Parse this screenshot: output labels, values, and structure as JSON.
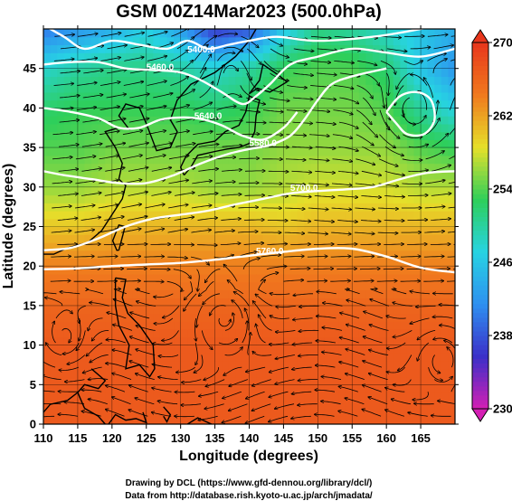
{
  "chart_data": {
    "type": "heatmap",
    "title": "GSM 00Z14Mar2023 (500.0hPa)",
    "xlabel": "Longitude (degrees)",
    "ylabel": "Latitude  (degrees)",
    "xlim": [
      110,
      170
    ],
    "ylim": [
      0,
      50
    ],
    "x_ticks": [
      "110",
      "115",
      "120",
      "125",
      "130",
      "135",
      "140",
      "145",
      "150",
      "155",
      "160",
      "165"
    ],
    "x_tick_values": [
      110,
      115,
      120,
      125,
      130,
      135,
      140,
      145,
      150,
      155,
      160,
      165
    ],
    "y_ticks": [
      "0",
      "5",
      "10",
      "15",
      "20",
      "25",
      "30",
      "35",
      "40",
      "45"
    ],
    "y_tick_values": [
      0,
      5,
      10,
      15,
      20,
      25,
      30,
      35,
      40,
      45
    ],
    "grid": true,
    "colorbar": {
      "range": [
        230,
        270
      ],
      "tick_labels": [
        "230",
        "238",
        "246",
        "254",
        "262",
        "270"
      ],
      "tick_values": [
        230,
        238,
        246,
        254,
        262,
        270
      ],
      "colors": [
        "#d51fb4",
        "#3b2fc8",
        "#2e8ff0",
        "#27d3e3",
        "#2ecf5a",
        "#e6e02a",
        "#f07a1e",
        "#e8361c"
      ]
    },
    "temperature_field": [
      {
        "lat": 50,
        "values": [
          240,
          242,
          244,
          247,
          243,
          236,
          238,
          246,
          251,
          250,
          248,
          246,
          244
        ]
      },
      {
        "lat": 45,
        "values": [
          248,
          250,
          251,
          251,
          250,
          248,
          250,
          253,
          254,
          254,
          252,
          246,
          242
        ]
      },
      {
        "lat": 40,
        "values": [
          252,
          253,
          253,
          253,
          253,
          252,
          253,
          255,
          255,
          255,
          254,
          250,
          247
        ]
      },
      {
        "lat": 35,
        "values": [
          254,
          254,
          255,
          255,
          255,
          255,
          255,
          256,
          256,
          256,
          256,
          254,
          253
        ]
      },
      {
        "lat": 30,
        "values": [
          256,
          256,
          257,
          257,
          257,
          256,
          256,
          257,
          258,
          258,
          258,
          257,
          257
        ]
      },
      {
        "lat": 25,
        "values": [
          260,
          260,
          261,
          261,
          261,
          261,
          261,
          260,
          261,
          261,
          261,
          261,
          261
        ]
      },
      {
        "lat": 20,
        "values": [
          264,
          264,
          264,
          264,
          264,
          264,
          264,
          264,
          264,
          264,
          264,
          264,
          264
        ]
      },
      {
        "lat": 15,
        "values": [
          266,
          266,
          266,
          266,
          266,
          266,
          266,
          266,
          266,
          266,
          266,
          266,
          266
        ]
      },
      {
        "lat": 10,
        "values": [
          267,
          267,
          267,
          267,
          267,
          267,
          267,
          267,
          267,
          267,
          267,
          267,
          267
        ]
      },
      {
        "lat": 5,
        "values": [
          267,
          267,
          267,
          267,
          267,
          267,
          267,
          267,
          267,
          267,
          267,
          267,
          267
        ]
      },
      {
        "lat": 0,
        "values": [
          267,
          267,
          267,
          267,
          267,
          267,
          267,
          267,
          267,
          267,
          267,
          267,
          267
        ]
      }
    ],
    "field_lons": [
      110,
      115,
      120,
      125,
      130,
      135,
      140,
      145,
      150,
      155,
      160,
      165,
      170
    ],
    "contours": [
      {
        "label": "5400.0",
        "label_lon": 133,
        "label_lat": 47,
        "points": [
          [
            110,
            50.5
          ],
          [
            113,
            49
          ],
          [
            116,
            47.5
          ],
          [
            120,
            48.5
          ],
          [
            124,
            48
          ],
          [
            128,
            47.5
          ],
          [
            131,
            48.5
          ],
          [
            134,
            47.5
          ],
          [
            137,
            48
          ],
          [
            140,
            48.5
          ],
          [
            144,
            49
          ],
          [
            150,
            48.5
          ],
          [
            158,
            49
          ],
          [
            165,
            50
          ],
          [
            170,
            51
          ]
        ]
      },
      {
        "label": "5460.0",
        "label_lon": 127,
        "label_lat": 44.8,
        "points": [
          [
            110,
            45.5
          ],
          [
            114,
            45.8
          ],
          [
            118,
            45.8
          ],
          [
            122,
            45
          ],
          [
            126,
            44.8
          ],
          [
            130,
            44.5
          ],
          [
            133,
            43.5
          ],
          [
            136,
            42
          ],
          [
            139,
            40.5
          ],
          [
            141,
            41.5
          ],
          [
            143,
            43
          ],
          [
            146,
            45.5
          ],
          [
            150,
            46.5
          ],
          [
            155,
            47.5
          ],
          [
            160,
            47
          ],
          [
            165,
            46.5
          ],
          [
            170,
            47.5
          ]
        ]
      },
      {
        "label": "5640.0",
        "label_lon": 134,
        "label_lat": 38.6,
        "points": [
          [
            110,
            40
          ],
          [
            114,
            39.5
          ],
          [
            118,
            38.7
          ],
          [
            121,
            37.5
          ],
          [
            124,
            37.5
          ],
          [
            127,
            38.5
          ],
          [
            130,
            38.8
          ],
          [
            133,
            38.6
          ],
          [
            136,
            37.8
          ],
          [
            139,
            36.5
          ],
          [
            142,
            36
          ],
          [
            145,
            37.5
          ],
          [
            147,
            39.5
          ]
        ]
      },
      {
        "label": "5580.0",
        "label_lon": 142,
        "label_lat": 35.2,
        "points": [
          [
            110,
            32
          ],
          [
            113,
            31.5
          ],
          [
            117,
            31
          ],
          [
            121,
            30.5
          ],
          [
            125,
            30.5
          ],
          [
            129,
            31.5
          ],
          [
            133,
            33
          ],
          [
            137,
            34.2
          ],
          [
            140,
            34.8
          ],
          [
            143,
            35.3
          ],
          [
            146,
            36.5
          ],
          [
            148,
            38.5
          ],
          [
            150,
            41
          ],
          [
            152,
            43
          ],
          [
            155,
            44
          ],
          [
            160,
            45
          ]
        ]
      },
      {
        "label": "5700.0",
        "label_lon": 148,
        "label_lat": 29.5,
        "points": [
          [
            110,
            22
          ],
          [
            114,
            22.3
          ],
          [
            118,
            23.5
          ],
          [
            122,
            25
          ],
          [
            126,
            26
          ],
          [
            130,
            26.5
          ],
          [
            134,
            27
          ],
          [
            138,
            27.8
          ],
          [
            142,
            28.5
          ],
          [
            146,
            29.2
          ],
          [
            150,
            29.5
          ],
          [
            154,
            29.7
          ],
          [
            158,
            30
          ],
          [
            162,
            31
          ],
          [
            166,
            31.8
          ],
          [
            170,
            32
          ]
        ]
      },
      {
        "label": "5760.0",
        "label_lon": 143,
        "label_lat": 21.5,
        "points": [
          [
            110,
            19.6
          ],
          [
            115,
            19.7
          ],
          [
            120,
            20
          ],
          [
            125,
            20.2
          ],
          [
            130,
            20.4
          ],
          [
            135,
            20.8
          ],
          [
            140,
            21.3
          ],
          [
            145,
            21.8
          ],
          [
            150,
            22.2
          ],
          [
            155,
            22.2
          ],
          [
            160,
            21.2
          ],
          [
            165,
            19.8
          ],
          [
            170,
            19.2
          ]
        ]
      },
      {
        "label": "",
        "label_lon": 0,
        "label_lat": 0,
        "points": [
          [
            160,
            39.5
          ],
          [
            162,
            41.5
          ],
          [
            164.5,
            42
          ],
          [
            166.5,
            41
          ],
          [
            167,
            38.5
          ],
          [
            165.5,
            36.7
          ],
          [
            163,
            36.7
          ],
          [
            161.5,
            38
          ],
          [
            160,
            39.5
          ]
        ]
      }
    ]
  },
  "footer": {
    "line1": "Drawing by DCL (https://www.gfd-dennou.org/library/dcl/)",
    "line2": "Data from http://database.rish.kyoto-u.ac.jp/arch/jmadata/"
  }
}
